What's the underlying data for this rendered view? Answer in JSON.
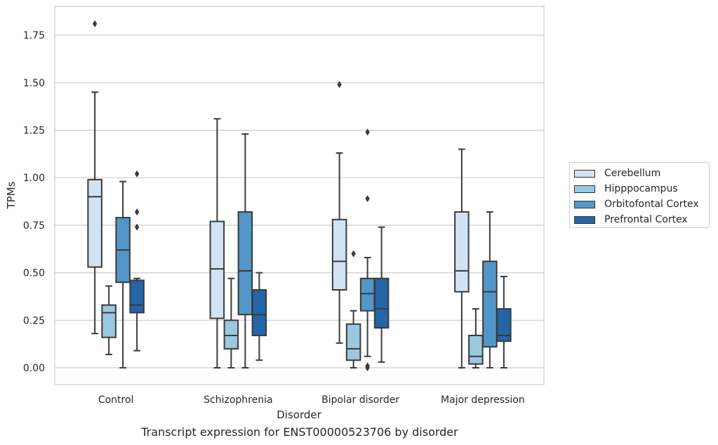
{
  "caption": "Transcript expression for ENST00000523706 by disorder",
  "chart_data": {
    "type": "box",
    "xlabel": "Disorder",
    "ylabel": "TPMs",
    "ylim": [
      -0.09,
      1.9
    ],
    "yticks": [
      "0.00",
      "0.25",
      "0.50",
      "0.75",
      "1.00",
      "1.25",
      "1.50",
      "1.75"
    ],
    "ytick_values": [
      0,
      0.25,
      0.5,
      0.75,
      1.0,
      1.25,
      1.5,
      1.75
    ],
    "grid": "horizontal",
    "legend_position": "right, outside",
    "categories": [
      "Control",
      "Schizophrenia",
      "Bipolar disorder",
      "Major depression"
    ],
    "series": [
      {
        "name": "Cerebellum",
        "color": "#d2e3f3",
        "boxes": [
          {
            "whislo": 0.18,
            "q1": 0.53,
            "med": 0.9,
            "q3": 0.99,
            "whishi": 1.45,
            "fliers": [
              1.81
            ]
          },
          {
            "whislo": 0.0,
            "q1": 0.26,
            "med": 0.52,
            "q3": 0.77,
            "whishi": 1.31,
            "fliers": []
          },
          {
            "whislo": 0.13,
            "q1": 0.41,
            "med": 0.56,
            "q3": 0.78,
            "whishi": 1.13,
            "fliers": [
              1.49
            ]
          },
          {
            "whislo": 0.0,
            "q1": 0.4,
            "med": 0.51,
            "q3": 0.82,
            "whishi": 1.15,
            "fliers": []
          }
        ]
      },
      {
        "name": "Hipppocampus",
        "color": "#9ac8e0",
        "boxes": [
          {
            "whislo": 0.07,
            "q1": 0.16,
            "med": 0.29,
            "q3": 0.33,
            "whishi": 0.43,
            "fliers": []
          },
          {
            "whislo": 0.0,
            "q1": 0.1,
            "med": 0.17,
            "q3": 0.25,
            "whishi": 0.47,
            "fliers": []
          },
          {
            "whislo": 0.0,
            "q1": 0.04,
            "med": 0.1,
            "q3": 0.23,
            "whishi": 0.3,
            "fliers": [
              0.6
            ]
          },
          {
            "whislo": 0.0,
            "q1": 0.02,
            "med": 0.06,
            "q3": 0.17,
            "whishi": 0.31,
            "fliers": []
          }
        ]
      },
      {
        "name": "Orbitofontal Cortex",
        "color": "#5297c7",
        "boxes": [
          {
            "whislo": 0.0,
            "q1": 0.45,
            "med": 0.62,
            "q3": 0.79,
            "whishi": 0.98,
            "fliers": []
          },
          {
            "whislo": 0.0,
            "q1": 0.28,
            "med": 0.51,
            "q3": 0.82,
            "whishi": 1.23,
            "fliers": []
          },
          {
            "whislo": 0.06,
            "q1": 0.3,
            "med": 0.39,
            "q3": 0.47,
            "whishi": 0.58,
            "fliers": [
              1.24,
              0.89,
              0.01,
              0.0
            ]
          },
          {
            "whislo": 0.0,
            "q1": 0.11,
            "med": 0.4,
            "q3": 0.56,
            "whishi": 0.82,
            "fliers": []
          }
        ]
      },
      {
        "name": "Prefrontal Cortex",
        "color": "#2465a8",
        "boxes": [
          {
            "whislo": 0.09,
            "q1": 0.29,
            "med": 0.33,
            "q3": 0.46,
            "whishi": 0.47,
            "fliers": [
              1.02,
              0.82,
              0.74
            ]
          },
          {
            "whislo": 0.04,
            "q1": 0.17,
            "med": 0.28,
            "q3": 0.41,
            "whishi": 0.5,
            "fliers": []
          },
          {
            "whislo": 0.03,
            "q1": 0.21,
            "med": 0.31,
            "q3": 0.47,
            "whishi": 0.74,
            "fliers": []
          },
          {
            "whislo": 0.0,
            "q1": 0.14,
            "med": 0.17,
            "q3": 0.31,
            "whishi": 0.48,
            "fliers": []
          }
        ]
      }
    ]
  }
}
